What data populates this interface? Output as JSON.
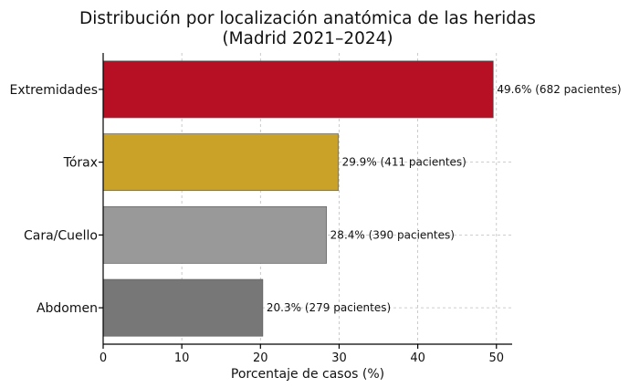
{
  "chart_data": {
    "type": "bar",
    "orientation": "horizontal",
    "title_lines": [
      "Distribución por localización anatómica de las heridas",
      "(Madrid 2021–2024)"
    ],
    "xlabel": "Porcentaje de casos (%)",
    "ylabel": "",
    "xlim": [
      0,
      52
    ],
    "xticks": [
      0,
      10,
      20,
      30,
      40,
      50
    ],
    "grid": true,
    "categories": [
      "Extremidades",
      "Tórax",
      "Cara/Cuello",
      "Abdomen"
    ],
    "values": [
      49.6,
      29.9,
      28.4,
      20.3
    ],
    "patients": [
      682,
      411,
      390,
      279
    ],
    "data_labels": [
      "49.6% (682 pacientes)",
      "29.9% (411 pacientes)",
      "28.4% (390 pacientes)",
      "20.3% (279 pacientes)"
    ],
    "colors": [
      "#b71024",
      "#c9a227",
      "#999999",
      "#777777"
    ]
  }
}
